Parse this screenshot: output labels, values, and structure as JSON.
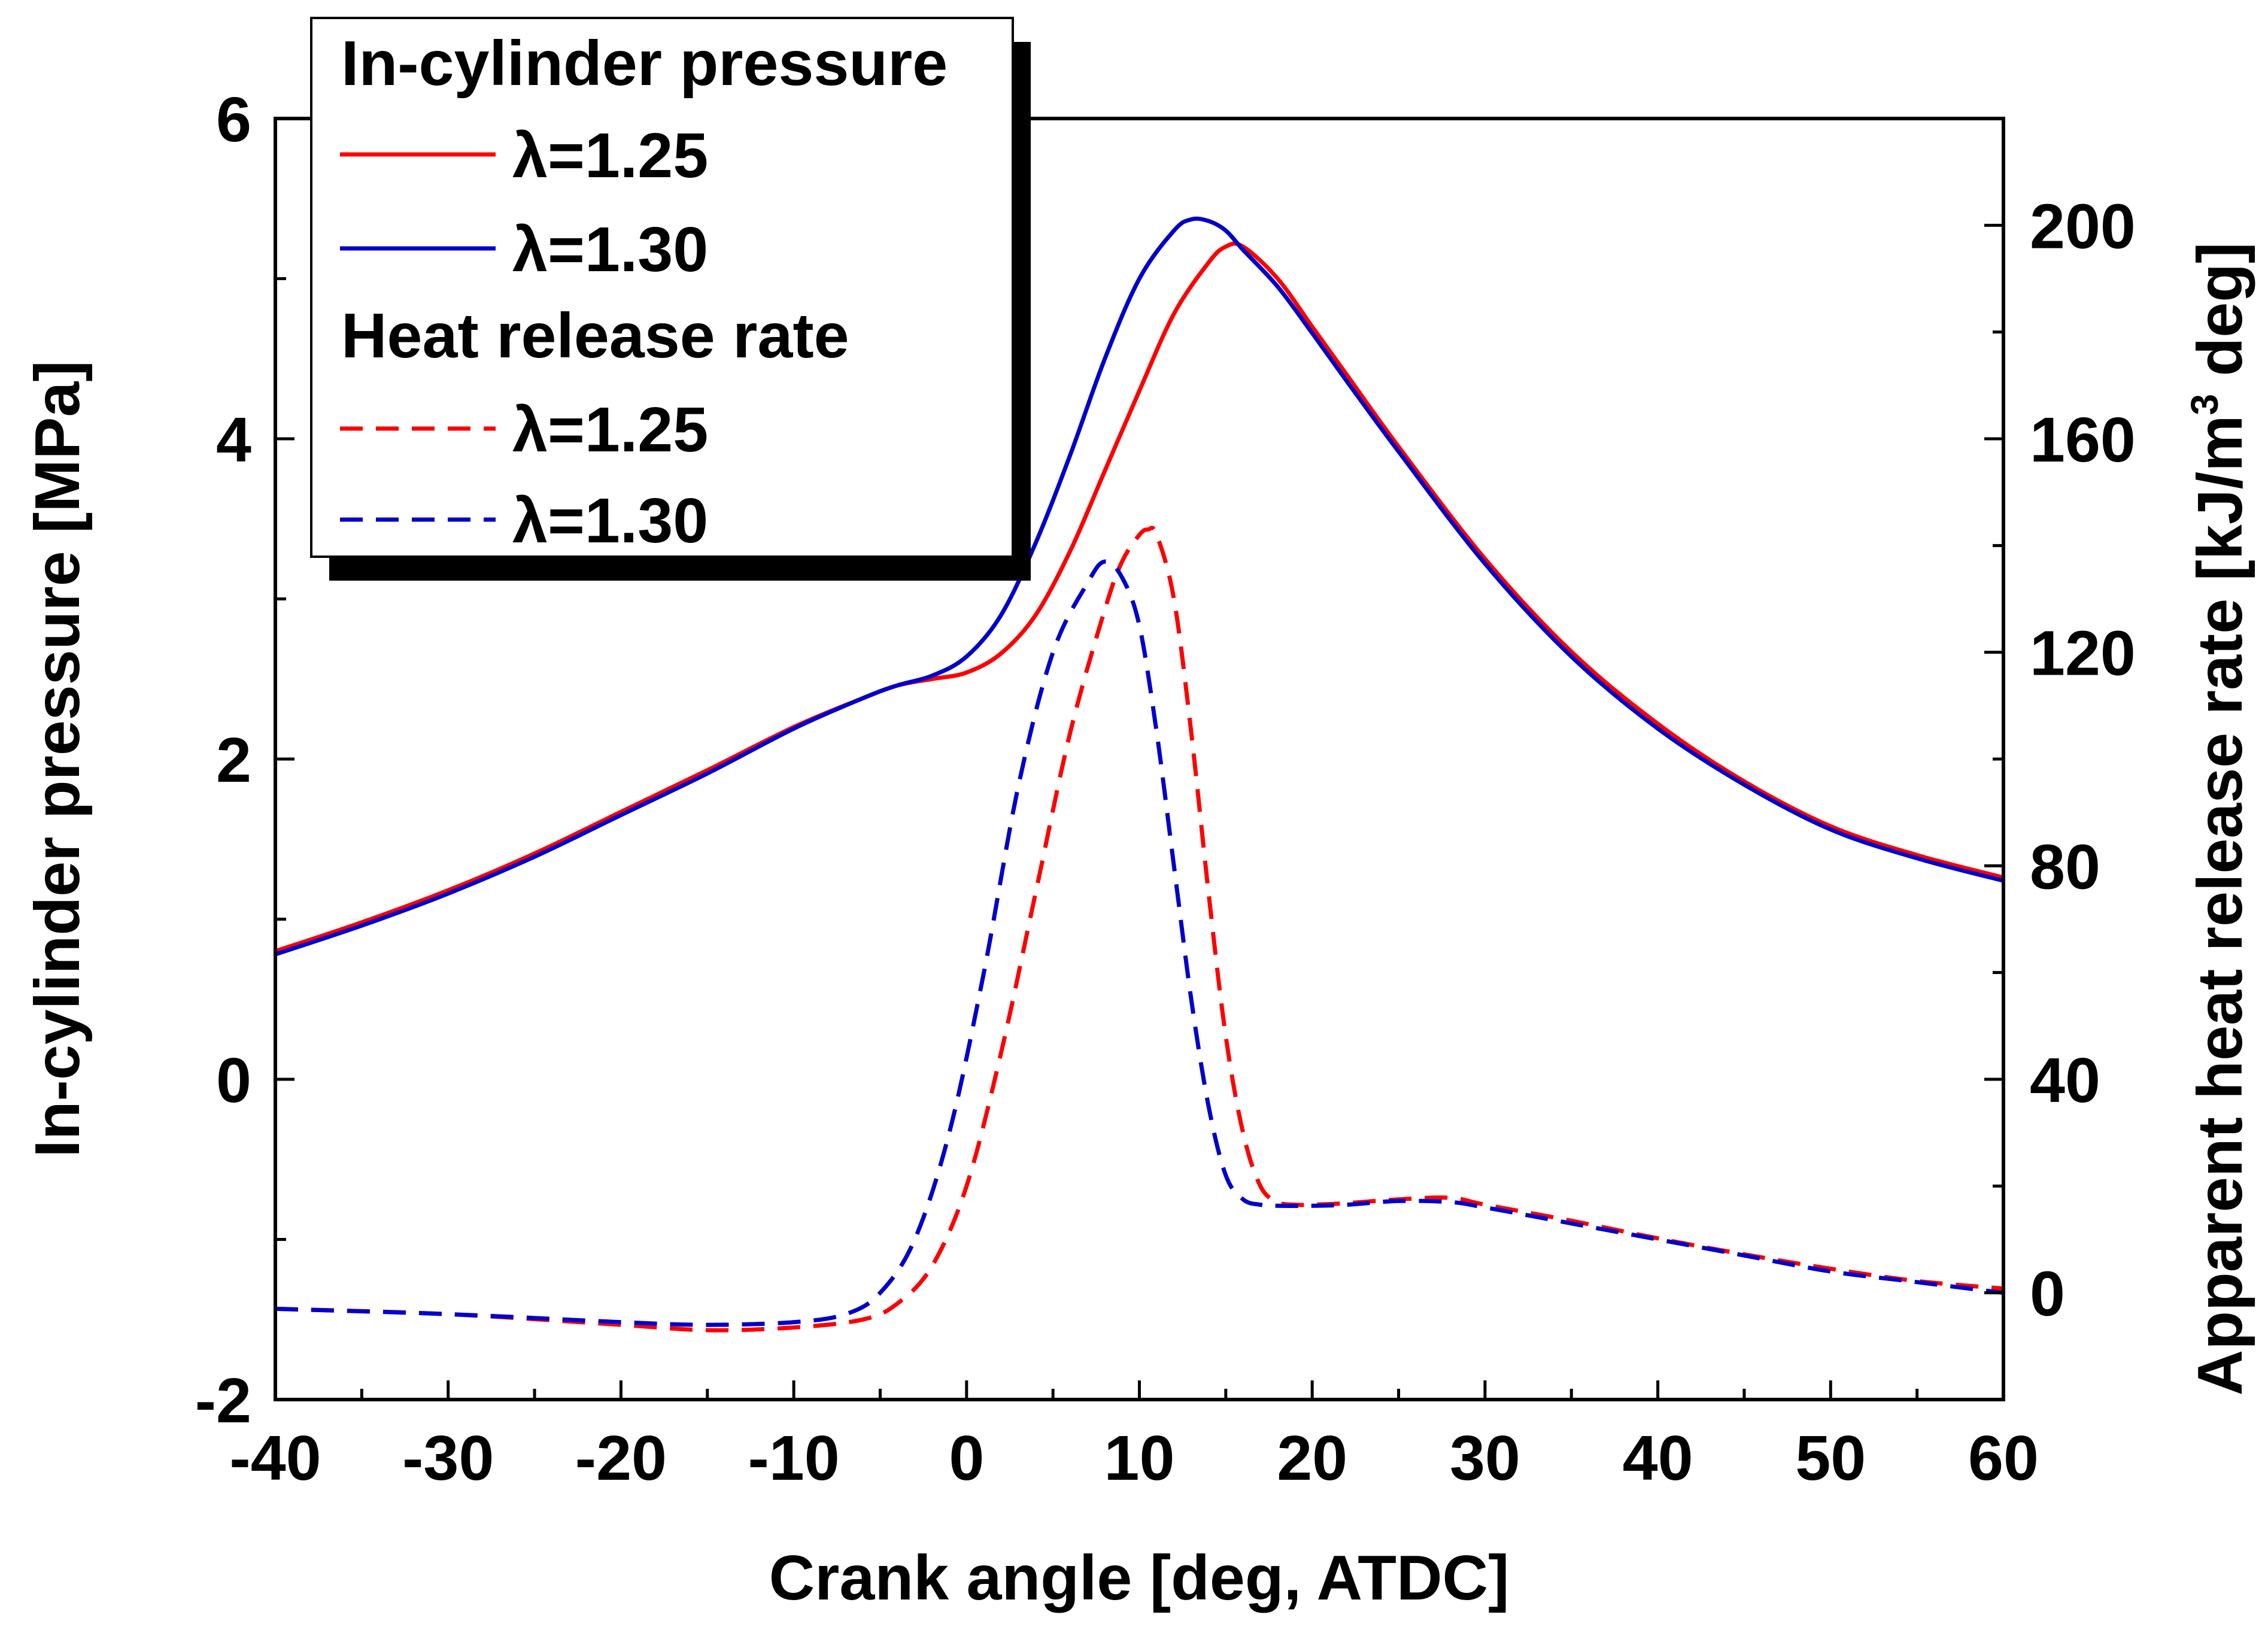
{
  "chart_data": {
    "type": "line",
    "xlabel": "Crank angle [deg, ATDC]",
    "ylabel_left": "In-cylinder pressure [MPa]",
    "ylabel_right_main": "Apparent heat release rate [kJ/m",
    "ylabel_right_sup": "3",
    "ylabel_right_tail": " deg]",
    "xlim": [
      -40,
      60
    ],
    "ylim_left": [
      -2,
      6
    ],
    "ylim_right": [
      -20,
      220
    ],
    "x_ticks": [
      -40,
      -30,
      -20,
      -10,
      0,
      10,
      20,
      30,
      40,
      50,
      60
    ],
    "x_tick_labels": [
      "-40",
      "-30",
      "-20",
      "-10",
      "0",
      "10",
      "20",
      "30",
      "40",
      "50",
      "60"
    ],
    "y_left_ticks": [
      -2,
      0,
      2,
      4,
      6
    ],
    "y_left_tick_labels": [
      "-2",
      "0",
      "2",
      "4",
      "6"
    ],
    "y_right_ticks": [
      0,
      40,
      80,
      120,
      160,
      200
    ],
    "y_right_tick_labels": [
      "0",
      "40",
      "80",
      "120",
      "160",
      "200"
    ],
    "legend": {
      "group1_title": "In-cylinder pressure",
      "group2_title": "Heat release rate",
      "entries": [
        {
          "label": "λ=1.25",
          "color": "#ff0000",
          "style": "solid"
        },
        {
          "label": "λ=1.30",
          "color": "#0000cc",
          "style": "solid"
        },
        {
          "label": "λ=1.25",
          "color": "#ff0000",
          "style": "dashed"
        },
        {
          "label": "λ=1.30",
          "color": "#0000cc",
          "style": "dashed"
        }
      ]
    },
    "series": [
      {
        "name": "In-cylinder pressure λ=1.25",
        "axis": "left",
        "color": "#ff0000",
        "style": "solid",
        "x": [
          -40,
          -35,
          -30,
          -25,
          -20,
          -15,
          -10,
          -6,
          -4,
          -2,
          0,
          2,
          4,
          6,
          8,
          10,
          12,
          14,
          15,
          16,
          18,
          20,
          22,
          25,
          30,
          35,
          40,
          45,
          50,
          55,
          60
        ],
        "y": [
          0.8,
          0.98,
          1.18,
          1.41,
          1.67,
          1.93,
          2.2,
          2.38,
          2.46,
          2.5,
          2.54,
          2.66,
          2.9,
          3.3,
          3.8,
          4.3,
          4.78,
          5.1,
          5.2,
          5.2,
          5.0,
          4.7,
          4.4,
          3.95,
          3.25,
          2.67,
          2.22,
          1.86,
          1.58,
          1.4,
          1.26
        ]
      },
      {
        "name": "In-cylinder pressure λ=1.30",
        "axis": "left",
        "color": "#0000cc",
        "style": "solid",
        "x": [
          -40,
          -35,
          -30,
          -25,
          -20,
          -15,
          -10,
          -6,
          -4,
          -2,
          0,
          2,
          4,
          6,
          8,
          10,
          12,
          13,
          14,
          15,
          16,
          18,
          20,
          22,
          25,
          30,
          35,
          40,
          45,
          50,
          55,
          60
        ],
        "y": [
          0.78,
          0.96,
          1.16,
          1.39,
          1.65,
          1.91,
          2.19,
          2.38,
          2.46,
          2.52,
          2.64,
          2.9,
          3.35,
          3.9,
          4.5,
          5.0,
          5.3,
          5.37,
          5.36,
          5.3,
          5.18,
          4.95,
          4.66,
          4.36,
          3.92,
          3.22,
          2.64,
          2.19,
          1.84,
          1.56,
          1.38,
          1.24
        ]
      },
      {
        "name": "Heat release rate λ=1.25",
        "axis": "right",
        "color": "#ff0000",
        "style": "dashed",
        "x": [
          -40,
          -30,
          -20,
          -15,
          -10,
          -6,
          -4,
          -2,
          0,
          2,
          4,
          6,
          8,
          9,
          10,
          10.5,
          11,
          12,
          13,
          14,
          15,
          16,
          17,
          18,
          19,
          20,
          22,
          25,
          28,
          30,
          35,
          40,
          45,
          50,
          55,
          60
        ],
        "y": [
          -3,
          -4,
          -6,
          -7,
          -6.5,
          -5,
          -2,
          5,
          20,
          45,
          75,
          105,
          128,
          137,
          142,
          143,
          142,
          130,
          105,
          75,
          48,
          30,
          20,
          17,
          16.5,
          16.5,
          16.8,
          17.5,
          17.8,
          16.5,
          13.5,
          10.2,
          7.2,
          4.5,
          2.2,
          0.8
        ]
      },
      {
        "name": "Heat release rate λ=1.30",
        "axis": "right",
        "color": "#0000cc",
        "style": "dashed",
        "x": [
          -40,
          -30,
          -20,
          -15,
          -10,
          -7,
          -5,
          -3,
          -1,
          1,
          3,
          5,
          7,
          8,
          9,
          10,
          11,
          12,
          13,
          14,
          15,
          16,
          17,
          18,
          20,
          22,
          25,
          28,
          30,
          35,
          40,
          45,
          50,
          55,
          60
        ],
        "y": [
          -3,
          -4,
          -5.5,
          -6,
          -5.5,
          -4,
          0,
          10,
          30,
          60,
          95,
          120,
          133,
          137,
          134,
          125,
          105,
          80,
          55,
          35,
          22,
          17.5,
          16.5,
          16.3,
          16.3,
          16.5,
          17.2,
          17,
          16,
          13,
          10,
          7,
          4,
          2,
          0
        ]
      }
    ]
  }
}
